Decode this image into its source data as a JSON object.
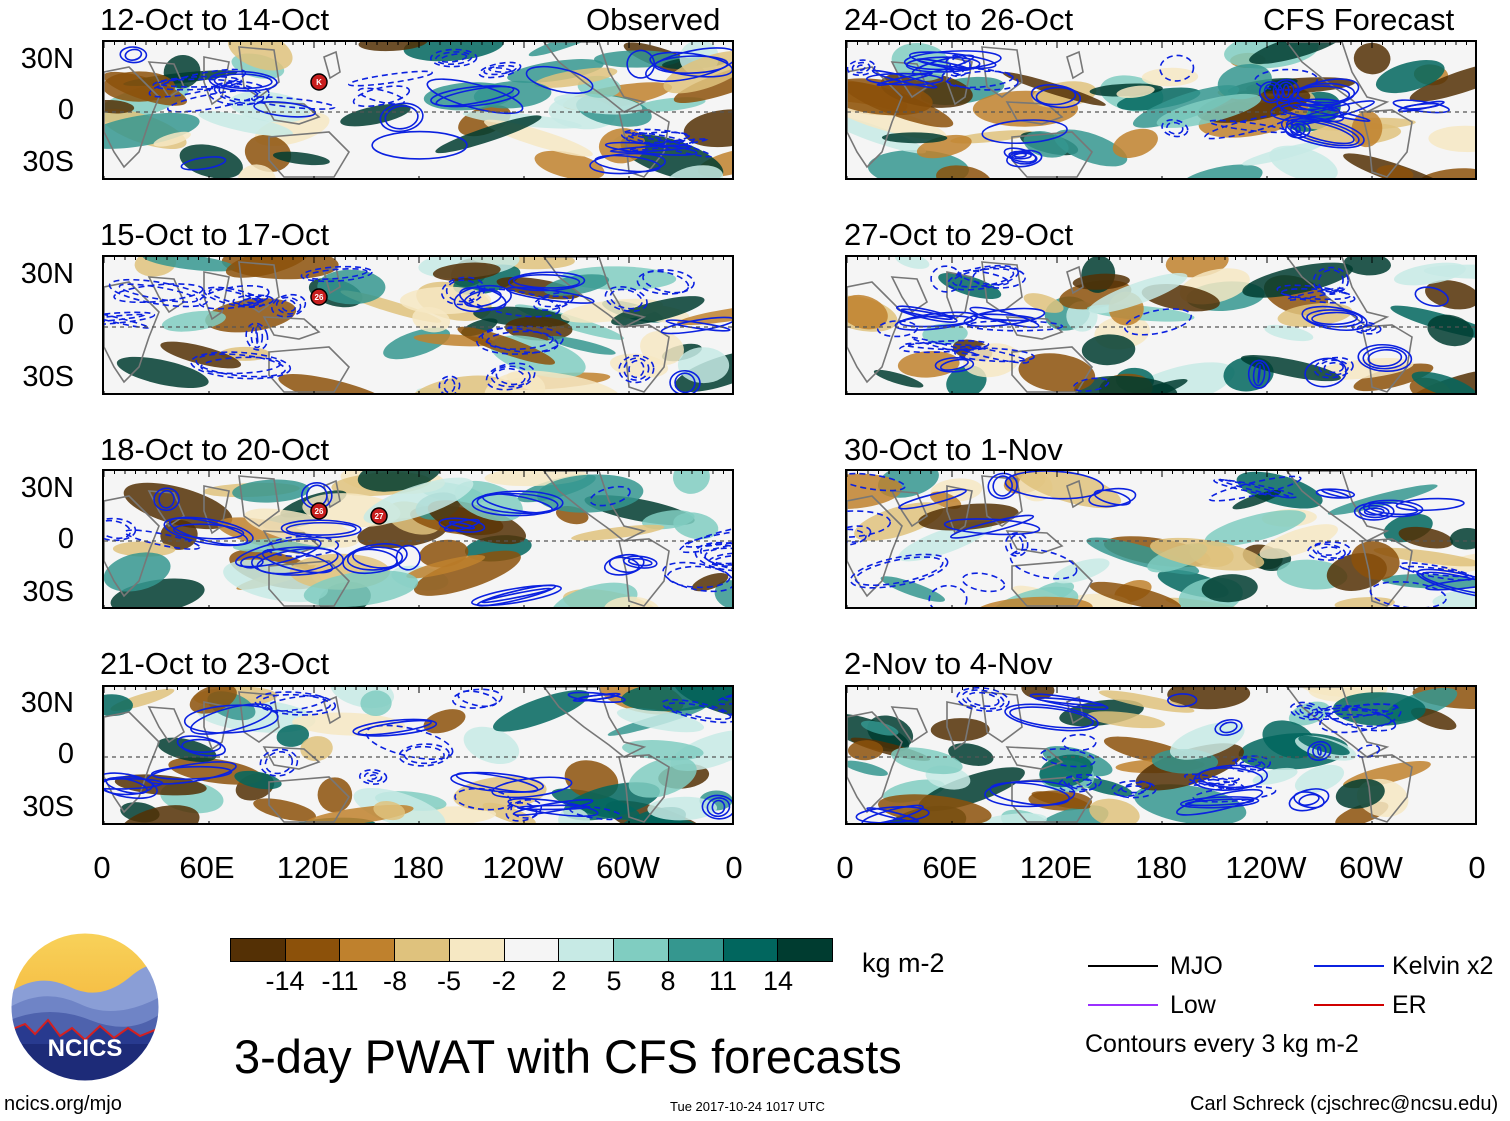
{
  "panels": {
    "left": [
      {
        "title": "12-Oct to 14-Oct",
        "tag": "Observed",
        "storms": [
          "K"
        ]
      },
      {
        "title": "15-Oct to 17-Oct",
        "tag": "",
        "storms": [
          "26"
        ]
      },
      {
        "title": "18-Oct to 20-Oct",
        "tag": "",
        "storms": [
          "26",
          "27"
        ]
      },
      {
        "title": "21-Oct to 23-Oct",
        "tag": "",
        "storms": []
      }
    ],
    "right": [
      {
        "title": "24-Oct to 26-Oct",
        "tag": "CFS Forecast"
      },
      {
        "title": "27-Oct to 29-Oct",
        "tag": ""
      },
      {
        "title": "30-Oct to 1-Nov",
        "tag": ""
      },
      {
        "title": "2-Nov to 4-Nov",
        "tag": ""
      }
    ]
  },
  "lat_labels": [
    "30N",
    "0",
    "30S"
  ],
  "lon_labels": [
    "0",
    "60E",
    "120E",
    "180",
    "120W",
    "60W",
    "0"
  ],
  "colorbar": {
    "colors": [
      "#543005",
      "#8c510a",
      "#bf812d",
      "#dfc27d",
      "#f6e8c3",
      "#f5f5f5",
      "#c7eae5",
      "#80cdc1",
      "#35978f",
      "#01665e",
      "#003c30"
    ],
    "ticks": [
      "-14",
      "-11",
      "-8",
      "-5",
      "-2",
      "2",
      "5",
      "8",
      "11",
      "14"
    ],
    "unit": "kg m-2"
  },
  "legend": {
    "items": [
      {
        "label": "MJO",
        "color": "#000000"
      },
      {
        "label": "Kelvin x2",
        "color": "#0b21e0"
      },
      {
        "label": "Low",
        "color": "#9b30ff"
      },
      {
        "label": "ER",
        "color": "#d00000"
      }
    ],
    "note": "Contours every 3 kg m-2"
  },
  "logo": {
    "text": "NCICS"
  },
  "main_title": "3-day PWAT with CFS forecasts",
  "footer": {
    "url": "ncics.org/mjo",
    "timestamp": "Tue 2017-10-24 1017 UTC",
    "author": "Carl Schreck (cjschrec@ncsu.edu)"
  }
}
